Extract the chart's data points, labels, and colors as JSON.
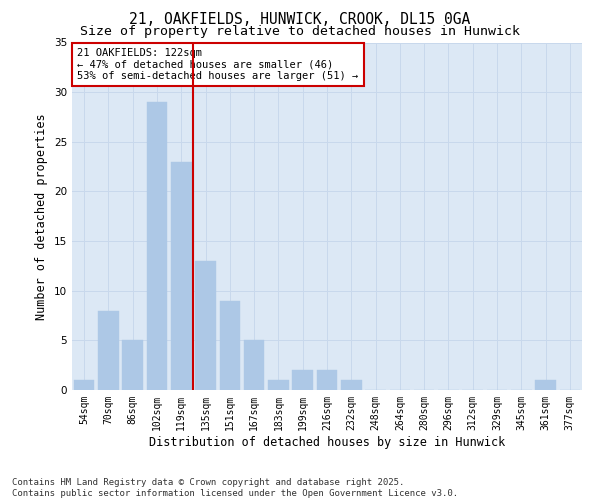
{
  "title1": "21, OAKFIELDS, HUNWICK, CROOK, DL15 0GA",
  "title2": "Size of property relative to detached houses in Hunwick",
  "xlabel": "Distribution of detached houses by size in Hunwick",
  "ylabel": "Number of detached properties",
  "categories": [
    "54sqm",
    "70sqm",
    "86sqm",
    "102sqm",
    "119sqm",
    "135sqm",
    "151sqm",
    "167sqm",
    "183sqm",
    "199sqm",
    "216sqm",
    "232sqm",
    "248sqm",
    "264sqm",
    "280sqm",
    "296sqm",
    "312sqm",
    "329sqm",
    "345sqm",
    "361sqm",
    "377sqm"
  ],
  "values": [
    1,
    8,
    5,
    29,
    23,
    13,
    9,
    5,
    1,
    2,
    2,
    1,
    0,
    0,
    0,
    0,
    0,
    0,
    0,
    1,
    0
  ],
  "bar_color": "#adc8e6",
  "bar_edge_color": "#adc8e6",
  "grid_color": "#c8d8ec",
  "bg_color": "#dce8f5",
  "fig_bg_color": "#ffffff",
  "vline_color": "#cc0000",
  "vline_x_index": 4,
  "annotation_text": "21 OAKFIELDS: 122sqm\n← 47% of detached houses are smaller (46)\n53% of semi-detached houses are larger (51) →",
  "annotation_box_color": "#ffffff",
  "annotation_box_edge": "#cc0000",
  "ylim": [
    0,
    35
  ],
  "yticks": [
    0,
    5,
    10,
    15,
    20,
    25,
    30,
    35
  ],
  "footnote": "Contains HM Land Registry data © Crown copyright and database right 2025.\nContains public sector information licensed under the Open Government Licence v3.0.",
  "title_fontsize": 10.5,
  "subtitle_fontsize": 9.5,
  "axis_label_fontsize": 8.5,
  "tick_fontsize": 7,
  "annotation_fontsize": 7.5,
  "footnote_fontsize": 6.5
}
